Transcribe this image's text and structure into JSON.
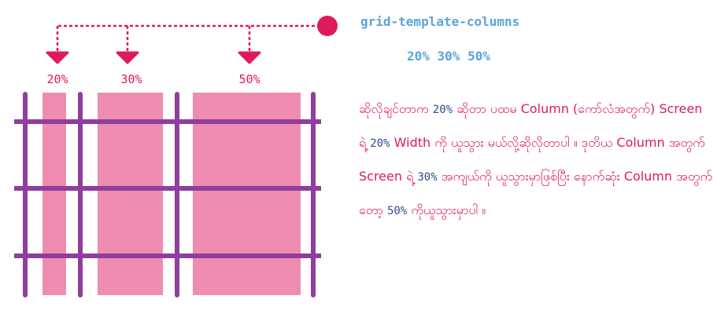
{
  "property": "grid-template-columns",
  "values_text": "20% 30% 50%",
  "column_labels": [
    "20%",
    "30%",
    "50%"
  ],
  "explanation": [
    {
      "text": "ဆိုလိုချင်တာက "
    },
    {
      "num": "20%"
    },
    {
      "text": " ဆိုတာ ပထမ Column (ကော်လံအတွက်) Screen ရဲ့ "
    },
    {
      "num": "20%"
    },
    {
      "text": " Width ကို ယူသွား မယ်လို့ဆိုလိုတာပါ ။ ဒုတိယ Column အတွက် Screen ရဲ့ "
    },
    {
      "num": "30%"
    },
    {
      "text": " အကျယ်ကို ယူသွားမှာဖြစ်ပြီး နောက်ဆုံး Column အတွက်တော့ "
    },
    {
      "num": "50%"
    },
    {
      "text": " ကိုယူသွားမှာပါ ။"
    }
  ],
  "colors": {
    "accent": "#e0195e",
    "column_fill": "#ef8cb2",
    "grid_line": "#8e3e9c",
    "code_text": "#5aa6d6",
    "number_text": "#2f4d8c"
  }
}
